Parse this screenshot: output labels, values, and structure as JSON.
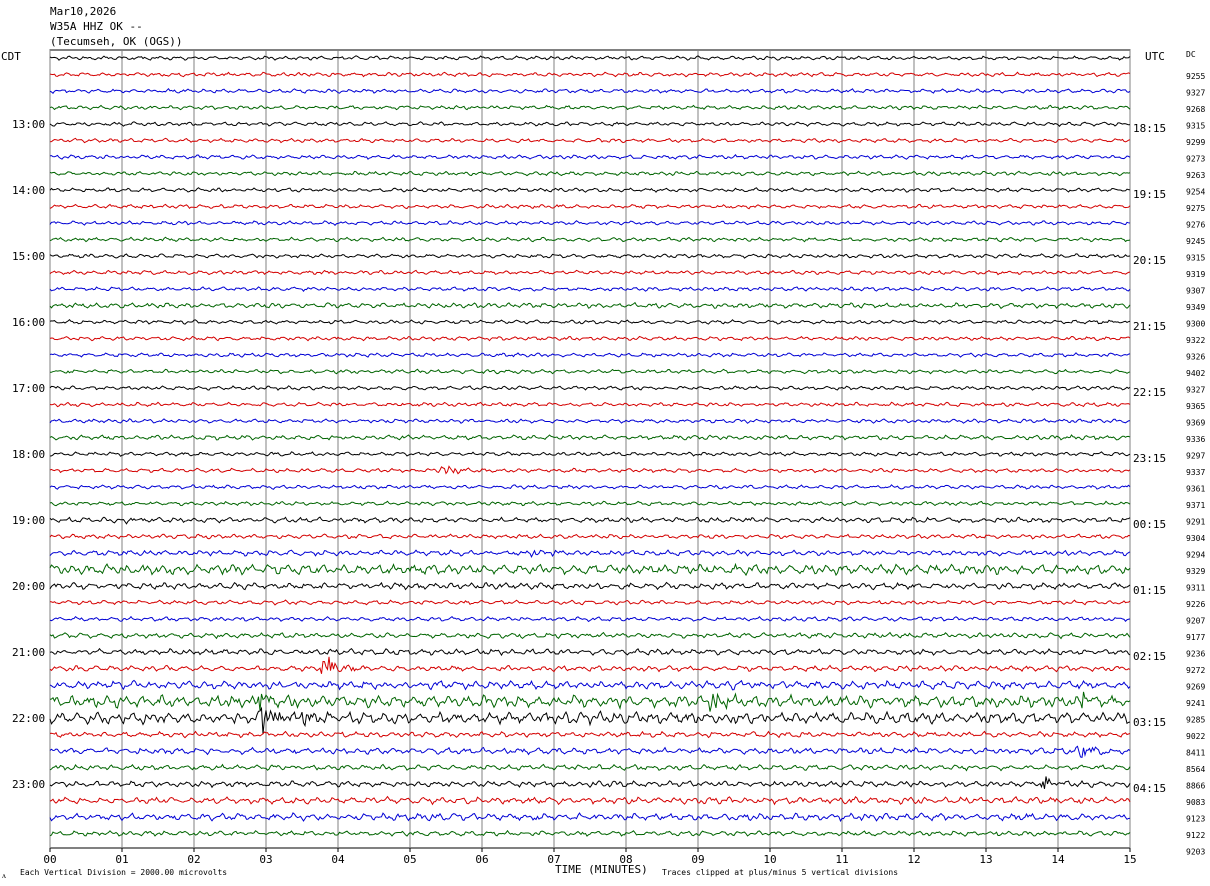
{
  "header": {
    "date": "Mar10,2026",
    "station": "W35A HHZ OK --",
    "location": "(Tecumseh, OK (OGS))"
  },
  "left_tz": "CDT",
  "right_tz": "UTC",
  "dc_label": "DC",
  "footer": {
    "scale_note": "Each Vertical Division = 2000.00 microvolts",
    "xaxis_label": "TIME (MINUTES)",
    "clip_note": "Traces clipped at plus/minus 5 vertical divisions",
    "corner_mark": "ᴧ"
  },
  "colors": {
    "cycle": [
      "#000000",
      "#d40000",
      "#0000d4",
      "#006400"
    ],
    "grid": "#808080"
  },
  "chart_data": {
    "type": "line",
    "x_ticks": [
      "00",
      "01",
      "02",
      "03",
      "04",
      "05",
      "06",
      "07",
      "08",
      "09",
      "10",
      "11",
      "12",
      "13",
      "14",
      "15"
    ],
    "xlim": [
      0,
      15
    ],
    "x_unit_label": "TIME (MINUTES)",
    "left_hour_labels": [
      "13:00",
      "14:00",
      "15:00",
      "16:00",
      "17:00",
      "18:00",
      "19:00",
      "20:00",
      "21:00",
      "22:00",
      "23:00"
    ],
    "right_hour_labels": [
      "18:15",
      "19:15",
      "20:15",
      "21:15",
      "22:15",
      "23:15",
      "00:15",
      "01:15",
      "02:15",
      "03:15",
      "04:15"
    ],
    "dc_offsets": [
      9255,
      9327,
      9268,
      9315,
      9299,
      9273,
      9263,
      9254,
      9275,
      9276,
      9245,
      9315,
      9319,
      9307,
      9349,
      9300,
      9322,
      9326,
      9402,
      9327,
      9365,
      9369,
      9336,
      9297,
      9337,
      9361,
      9371,
      9291,
      9304,
      9294,
      9329,
      9311,
      9226,
      9207,
      9177,
      9236,
      9272,
      9269,
      9241,
      9285,
      9022,
      8411,
      8564,
      8866,
      9083,
      9123,
      9122,
      9203
    ],
    "trace_amplitude": [
      1,
      1,
      1,
      1,
      1,
      1,
      1,
      1,
      1,
      1,
      1,
      1,
      1,
      1,
      1,
      1.3,
      1,
      1,
      1,
      1,
      1,
      1,
      1,
      1.2,
      1,
      1,
      1,
      1,
      1.3,
      1.1,
      1.4,
      2.5,
      1.6,
      1.1,
      1.1,
      1.3,
      1.5,
      1.4,
      2,
      3,
      3,
      1.4,
      1.6,
      1.4,
      1.5,
      1.7,
      1.8,
      1.3
    ],
    "events": [
      {
        "trace": 25,
        "minute": 5.45,
        "amp": 4
      },
      {
        "trace": 28,
        "minute": 1.05,
        "amp": 3
      },
      {
        "trace": 30,
        "minute": 6.7,
        "amp": 3
      },
      {
        "trace": 37,
        "minute": 3.8,
        "amp": 10
      },
      {
        "trace": 38,
        "minute": 9.5,
        "amp": 4
      },
      {
        "trace": 39,
        "minute": 2.9,
        "amp": 8
      },
      {
        "trace": 39,
        "minute": 9.2,
        "amp": 8
      },
      {
        "trace": 39,
        "minute": 14.35,
        "amp": 7
      },
      {
        "trace": 40,
        "minute": 2.95,
        "amp": 12
      },
      {
        "trace": 40,
        "minute": 3.5,
        "amp": 5
      },
      {
        "trace": 42,
        "minute": 14.3,
        "amp": 5
      },
      {
        "trace": 44,
        "minute": 13.8,
        "amp": 5
      }
    ]
  }
}
